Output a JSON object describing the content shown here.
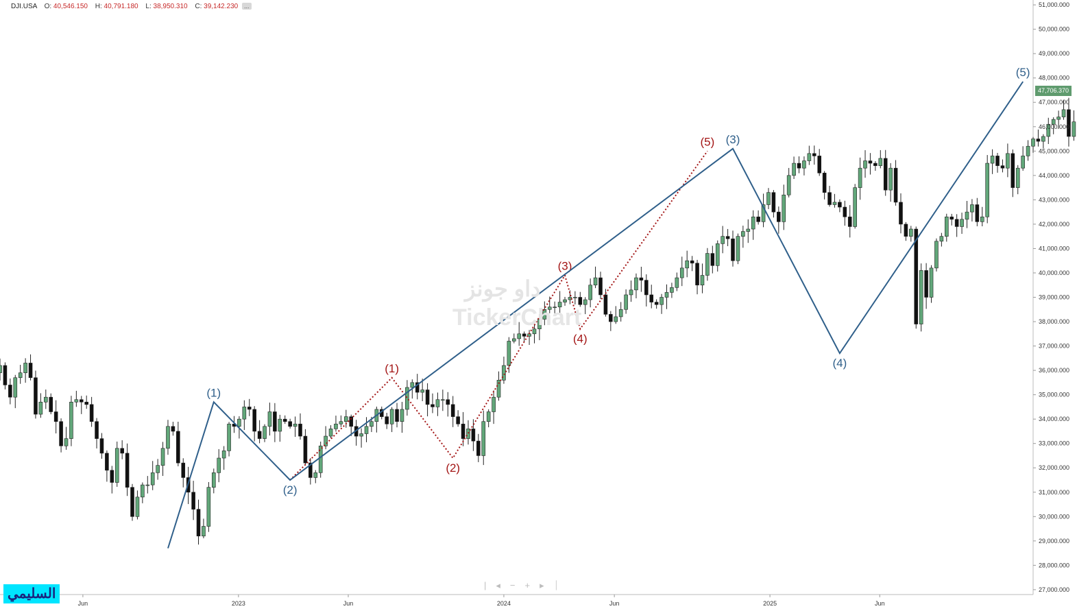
{
  "header": {
    "symbol": "DJI.USA",
    "open_label": "O:",
    "open": "40,546.150",
    "high_label": "H:",
    "high": "40,791.180",
    "low_label": "L:",
    "low": "38,950.310",
    "close_label": "C:",
    "close": "39,142.230",
    "more": "..."
  },
  "last_price": "47,706.370",
  "watermark": {
    "arabic": "داو جونز",
    "brand": "TickerChart"
  },
  "nav_glyphs": "|◂−+▸⏐",
  "author_badge": "السليمي",
  "colors": {
    "up": "#62a77a",
    "down": "#111111",
    "primary_wave": "#2f5f8a",
    "sub_wave": "#a31515",
    "badge_bg": "#00e5ff"
  },
  "chart_data": {
    "type": "candlestick",
    "title": "",
    "yaxis": {
      "ylim": [
        26800,
        51200
      ],
      "ticks": [
        27000,
        28000,
        29000,
        30000,
        31000,
        32000,
        33000,
        34000,
        35000,
        36000,
        37000,
        38000,
        39000,
        40000,
        41000,
        42000,
        43000,
        44000,
        45000,
        46000,
        47000,
        48000,
        49000,
        50000,
        51000
      ],
      "tick_labels": [
        "27,000.000",
        "28,000.000",
        "29,000.000",
        "30,000.000",
        "31,000.000",
        "32,000.000",
        "33,000.000",
        "34,000.000",
        "35,000.000",
        "36,000.000",
        "37,000.000",
        "38,000.000",
        "39,000.000",
        "40,000.000",
        "41,000.000",
        "42,000.000",
        "43,000.000",
        "44,000.000",
        "45,000.000",
        "46,000.000",
        "47,000.000",
        "48,000.000",
        "49,000.000",
        "50,000.000",
        "51,000.000"
      ],
      "side": "right"
    },
    "xaxis": {
      "type": "date",
      "range": [
        "2022-02-07",
        "2025-12-29"
      ],
      "ticks": [
        {
          "date": "2022-06-01",
          "label": "Jun"
        },
        {
          "date": "2023-01-01",
          "label": "2023"
        },
        {
          "date": "2023-06-01",
          "label": "Jun"
        },
        {
          "date": "2024-01-01",
          "label": "2024"
        },
        {
          "date": "2024-06-01",
          "label": "Jun"
        },
        {
          "date": "2025-01-01",
          "label": "2025"
        },
        {
          "date": "2025-06-01",
          "label": "Jun"
        }
      ]
    },
    "frequency": "weekly",
    "first_week": "2022-02-07",
    "closes": [
      36200,
      35400,
      34900,
      35700,
      35900,
      36300,
      35700,
      34200,
      34700,
      34900,
      34300,
      33900,
      32900,
      33200,
      34700,
      34800,
      34700,
      34600,
      33900,
      33200,
      32600,
      31900,
      31400,
      32800,
      32600,
      31200,
      30000,
      30800,
      31300,
      31300,
      31800,
      32100,
      32800,
      33700,
      33500,
      32200,
      31600,
      31000,
      30300,
      29200,
      29600,
      31200,
      31800,
      32400,
      32700,
      33800,
      33700,
      34000,
      34500,
      34400,
      33500,
      33200,
      33700,
      34300,
      33500,
      34000,
      33900,
      33700,
      33800,
      33300,
      32200,
      31600,
      31800,
      32900,
      33300,
      33600,
      33800,
      33900,
      34100,
      33700,
      33300,
      33400,
      33700,
      33900,
      34400,
      34100,
      33800,
      34400,
      33900,
      34400,
      35300,
      35500,
      35100,
      35200,
      34600,
      34500,
      34800,
      34800,
      34600,
      34100,
      33800,
      33200,
      33600,
      33100,
      32500,
      33900,
      34300,
      34900,
      35600,
      36200,
      37200,
      37300,
      37500,
      37400,
      37500,
      37700,
      38100,
      38500,
      38600,
      38600,
      38800,
      38900,
      39000,
      39000,
      38700,
      38900,
      39500,
      39800,
      39100,
      38300,
      38000,
      38200,
      38500,
      39100,
      39300,
      39800,
      39700,
      39100,
      38800,
      38700,
      39000,
      39200,
      39400,
      39800,
      40200,
      40500,
      40400,
      39500,
      39900,
      40800,
      40300,
      41200,
      41500,
      41400,
      40500,
      41500,
      41700,
      41800,
      42300,
      42100,
      42800,
      43300,
      42500,
      42100,
      43200,
      44000,
      44500,
      44300,
      44600,
      44900,
      44800,
      44100,
      43300,
      42800,
      42900,
      42700,
      42300,
      41900,
      43500,
      44300,
      44600,
      44500,
      44400,
      44700,
      43400,
      44300,
      42900,
      42000,
      41500,
      41800,
      37900,
      40100,
      39000,
      40200,
      41300,
      41500,
      42300,
      42200,
      41900,
      42200,
      42500,
      42800,
      42100,
      42300,
      44500,
      44800,
      44400,
      44300,
      44900,
      43500,
      44300,
      44800,
      45200,
      45500,
      45400,
      45600,
      46100,
      46300,
      46400,
      46700,
      45600,
      46200,
      46800,
      47706.37
    ],
    "wave_primary": {
      "points": [
        {
          "date": "2022-09-26",
          "value": 28700,
          "label": ""
        },
        {
          "date": "2022-11-28",
          "value": 34700,
          "label": "(1)"
        },
        {
          "date": "2023-03-13",
          "value": 31500,
          "label": "(2)"
        },
        {
          "date": "2024-11-11",
          "value": 45100,
          "label": "(3)"
        },
        {
          "date": "2025-04-07",
          "value": 36700,
          "label": "(4)"
        },
        {
          "date": "2025-12-15",
          "value": 47850,
          "label": "(5)"
        }
      ]
    },
    "wave_secondary": {
      "points": [
        {
          "date": "2023-03-13",
          "value": 31500,
          "label": ""
        },
        {
          "date": "2023-07-31",
          "value": 35700,
          "label": "(1)"
        },
        {
          "date": "2023-10-23",
          "value": 32400,
          "label": "(2)"
        },
        {
          "date": "2024-03-25",
          "value": 39900,
          "label": "(3)"
        },
        {
          "date": "2024-04-15",
          "value": 37700,
          "label": "(4)"
        },
        {
          "date": "2024-10-07",
          "value": 45000,
          "label": "(5)"
        }
      ]
    }
  }
}
